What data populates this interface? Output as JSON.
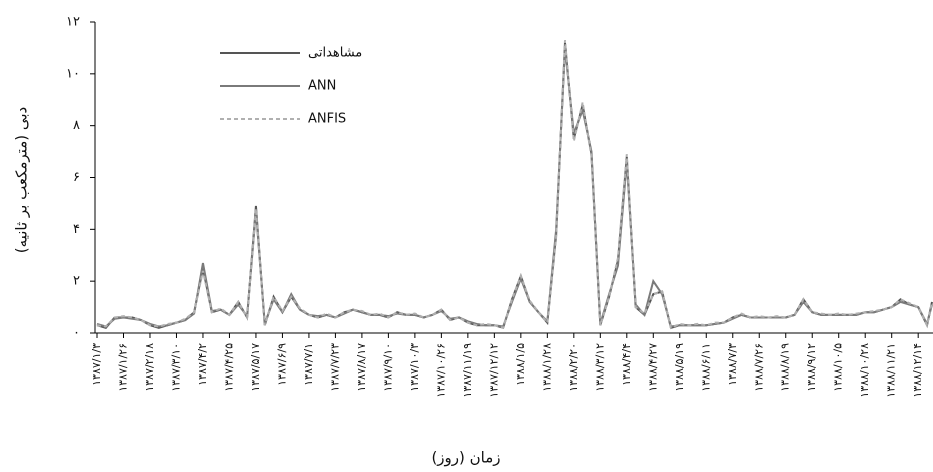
{
  "chart_data": {
    "type": "line",
    "y_label": "دبی (مترمکعب بر ثانیه)",
    "x_label": "زمان (روز)",
    "categories": [
      "۱۳۸۷/۱/۳",
      null,
      null,
      "۱۳۸۷/۱/۲۶",
      null,
      null,
      "۱۳۸۷/۲/۱۸",
      null,
      null,
      "۱۳۸۷/۳/۱۰",
      null,
      null,
      "۱۳۸۷/۴/۲",
      null,
      null,
      "۱۳۸۷/۴/۲۵",
      null,
      null,
      "۱۳۸۷/۵/۱۷",
      null,
      null,
      "۱۳۸۷/۶/۹",
      null,
      null,
      "۱۳۸۷/۷/۱",
      null,
      null,
      "۱۳۸۷/۷/۲۳",
      null,
      null,
      "۱۳۸۷/۸/۱۷",
      null,
      null,
      "۱۳۸۷/۹/۱۰",
      null,
      null,
      "۱۳۸۷/۱۰/۳",
      null,
      null,
      "۱۳۸۷/۱۰/۲۶",
      null,
      null,
      "۱۳۸۷/۱۱/۱۹",
      null,
      null,
      "۱۳۸۷/۱۲/۱۲",
      null,
      null,
      "۱۳۸۸/۱/۵",
      null,
      null,
      "۱۳۸۸/۱/۲۸",
      null,
      null,
      "۱۳۸۸/۲/۲۰",
      null,
      null,
      "۱۳۸۸/۳/۱۲",
      null,
      null,
      "۱۳۸۸/۴/۴",
      null,
      null,
      "۱۳۸۸/۴/۲۷",
      null,
      null,
      "۱۳۸۸/۵/۱۹",
      null,
      null,
      "۱۳۸۸/۶/۱۱",
      null,
      null,
      "۱۳۸۸/۷/۳",
      null,
      null,
      "۱۳۸۸/۷/۲۶",
      null,
      null,
      "۱۳۸۸/۸/۱۹",
      null,
      null,
      "۱۳۸۸/۹/۱۲",
      null,
      null,
      "۱۳۸۸/۱۰/۵",
      null,
      null,
      "۱۳۸۸/۱۰/۲۸",
      null,
      null,
      "۱۳۸۸/۱۱/۲۱",
      null,
      null,
      "۱۳۸۸/۱۲/۱۴",
      null,
      null
    ],
    "series": [
      {
        "name": "مشاهداتی",
        "color": "#555555",
        "dashed": false,
        "values": [
          0.3,
          0.2,
          0.6,
          0.6,
          0.6,
          0.5,
          0.3,
          0.2,
          0.3,
          0.4,
          0.5,
          0.8,
          2.5,
          0.8,
          0.9,
          0.7,
          1.2,
          0.6,
          4.9,
          0.3,
          1.4,
          0.8,
          1.4,
          0.9,
          0.7,
          0.6,
          0.7,
          0.6,
          0.8,
          0.9,
          0.8,
          0.7,
          0.7,
          0.6,
          0.8,
          0.7,
          0.7,
          0.6,
          0.7,
          0.9,
          0.5,
          0.6,
          0.4,
          0.3,
          0.3,
          0.3,
          0.2,
          1.3,
          2.2,
          1.2,
          0.8,
          0.4,
          3.8,
          11.2,
          7.5,
          8.8,
          6.9,
          0.3,
          1.4,
          2.8,
          6.8,
          1.0,
          0.7,
          1.5,
          1.6,
          0.2,
          0.3,
          0.3,
          0.3,
          0.3,
          0.35,
          0.4,
          0.6,
          0.7,
          0.6,
          0.6,
          0.6,
          0.6,
          0.6,
          0.7,
          1.3,
          0.8,
          0.7,
          0.7,
          0.7,
          0.7,
          0.7,
          0.8,
          0.8,
          0.9,
          1.0,
          1.3,
          1.1,
          1.0,
          0.3,
          1.2
        ]
      },
      {
        "name": "ANN",
        "color": "#7a7a7a",
        "dashed": false,
        "values": [
          0.35,
          0.25,
          0.55,
          0.6,
          0.55,
          0.5,
          0.35,
          0.25,
          0.3,
          0.4,
          0.5,
          0.75,
          2.7,
          0.85,
          0.9,
          0.7,
          1.1,
          0.65,
          4.7,
          0.35,
          1.3,
          0.8,
          1.5,
          0.9,
          0.7,
          0.65,
          0.7,
          0.6,
          0.75,
          0.9,
          0.8,
          0.7,
          0.7,
          0.65,
          0.75,
          0.7,
          0.7,
          0.6,
          0.7,
          0.85,
          0.55,
          0.6,
          0.45,
          0.35,
          0.3,
          0.3,
          0.25,
          1.2,
          2.1,
          1.2,
          0.8,
          0.45,
          4.0,
          11.0,
          7.7,
          8.6,
          7.0,
          0.35,
          1.5,
          2.6,
          6.6,
          1.1,
          0.7,
          2.0,
          1.5,
          0.25,
          0.3,
          0.3,
          0.3,
          0.3,
          0.35,
          0.4,
          0.55,
          0.7,
          0.6,
          0.6,
          0.6,
          0.6,
          0.6,
          0.7,
          1.2,
          0.8,
          0.7,
          0.7,
          0.7,
          0.7,
          0.7,
          0.8,
          0.8,
          0.9,
          1.0,
          1.2,
          1.1,
          1.0,
          0.35,
          1.1
        ]
      },
      {
        "name": "ANFIS",
        "color": "#b0b0b0",
        "dashed": true,
        "values": [
          0.3,
          0.25,
          0.6,
          0.65,
          0.6,
          0.5,
          0.3,
          0.25,
          0.35,
          0.4,
          0.55,
          0.8,
          2.4,
          0.8,
          0.95,
          0.7,
          1.2,
          0.6,
          4.8,
          0.3,
          1.4,
          0.85,
          1.4,
          0.95,
          0.7,
          0.6,
          0.75,
          0.6,
          0.8,
          0.9,
          0.85,
          0.7,
          0.75,
          0.6,
          0.8,
          0.7,
          0.75,
          0.6,
          0.7,
          0.9,
          0.5,
          0.6,
          0.4,
          0.3,
          0.35,
          0.3,
          0.2,
          1.3,
          2.2,
          1.25,
          0.8,
          0.4,
          3.7,
          11.3,
          7.4,
          8.9,
          6.8,
          0.3,
          1.4,
          2.9,
          6.9,
          1.0,
          0.75,
          1.5,
          1.6,
          0.2,
          0.35,
          0.3,
          0.35,
          0.3,
          0.4,
          0.4,
          0.6,
          0.75,
          0.6,
          0.65,
          0.6,
          0.65,
          0.6,
          0.7,
          1.3,
          0.8,
          0.75,
          0.7,
          0.75,
          0.7,
          0.75,
          0.8,
          0.85,
          0.9,
          1.0,
          1.3,
          1.15,
          1.0,
          0.3,
          1.2
        ]
      }
    ],
    "ylim": [
      0,
      12
    ],
    "yticks": [
      {
        "value": 0,
        "label": "۰"
      },
      {
        "value": 2,
        "label": "۲"
      },
      {
        "value": 4,
        "label": "۴"
      },
      {
        "value": 6,
        "label": "۶"
      },
      {
        "value": 8,
        "label": "۸"
      },
      {
        "value": 10,
        "label": "۱۰"
      },
      {
        "value": 12,
        "label": "۱۲"
      }
    ],
    "legend": "upper-left"
  }
}
